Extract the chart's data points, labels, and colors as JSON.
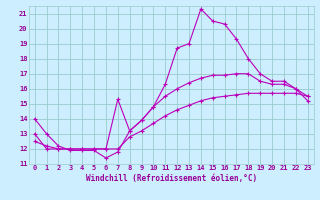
{
  "xlabel": "Windchill (Refroidissement éolien,°C)",
  "x_hours": [
    0,
    1,
    2,
    3,
    4,
    5,
    6,
    7,
    8,
    9,
    10,
    11,
    12,
    13,
    14,
    15,
    16,
    17,
    18,
    19,
    20,
    21,
    22,
    23
  ],
  "line1_y": [
    14.0,
    13.0,
    12.2,
    11.9,
    11.9,
    11.9,
    11.4,
    11.8,
    13.2,
    13.9,
    14.8,
    16.3,
    18.7,
    19.0,
    21.3,
    20.5,
    20.3,
    19.3,
    18.0,
    17.0,
    16.5,
    16.5,
    16.0,
    15.2
  ],
  "line2_y": [
    13.0,
    12.0,
    12.0,
    12.0,
    12.0,
    12.0,
    12.0,
    15.3,
    13.2,
    13.9,
    14.8,
    15.5,
    16.0,
    16.4,
    16.7,
    16.9,
    16.9,
    17.0,
    17.0,
    16.5,
    16.3,
    16.3,
    16.0,
    15.5
  ],
  "line3_y": [
    12.5,
    12.2,
    12.0,
    12.0,
    12.0,
    12.0,
    12.0,
    12.0,
    12.8,
    13.2,
    13.7,
    14.2,
    14.6,
    14.9,
    15.2,
    15.4,
    15.5,
    15.6,
    15.7,
    15.7,
    15.7,
    15.7,
    15.7,
    15.5
  ],
  "line_color": "#bb00bb",
  "bg_color": "#cceeff",
  "grid_color": "#99cccc",
  "tick_color": "#990099",
  "label_color": "#990099",
  "ylim": [
    11,
    21.5
  ],
  "xlim": [
    -0.5,
    23.5
  ],
  "yticks": [
    11,
    12,
    13,
    14,
    15,
    16,
    17,
    18,
    19,
    20,
    21
  ],
  "xticks": [
    0,
    1,
    2,
    3,
    4,
    5,
    6,
    7,
    8,
    9,
    10,
    11,
    12,
    13,
    14,
    15,
    16,
    17,
    18,
    19,
    20,
    21,
    22,
    23
  ],
  "marker": "+",
  "markersize": 3,
  "linewidth": 0.8,
  "tick_fontsize": 5.0,
  "xlabel_fontsize": 5.5
}
